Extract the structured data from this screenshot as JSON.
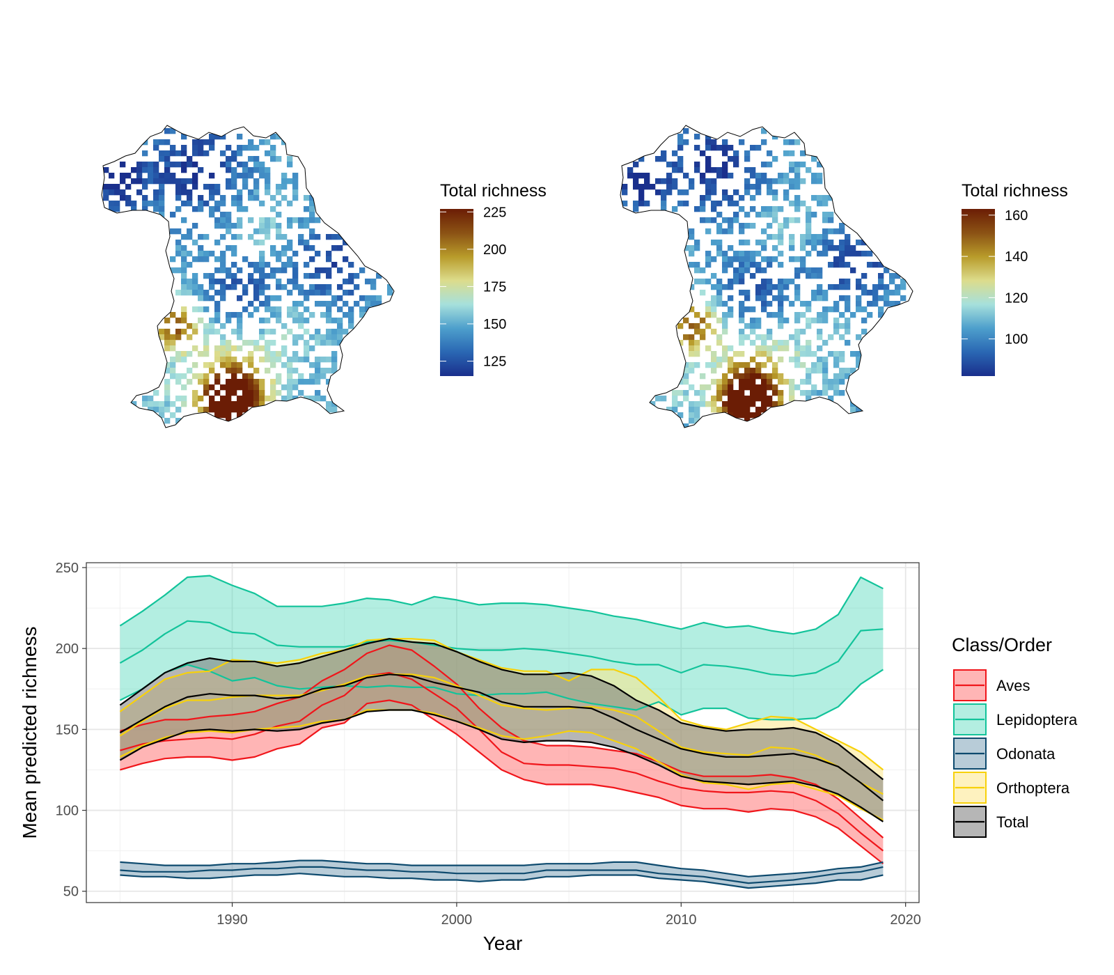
{
  "maps": [
    {
      "legend_title": "Total richness",
      "colorbar_ticks": [
        "225",
        "200",
        "175",
        "150",
        "125"
      ],
      "tick_values": [
        225,
        200,
        175,
        150,
        125
      ],
      "range": [
        115,
        227
      ]
    },
    {
      "legend_title": "Total richness",
      "colorbar_ticks": [
        "160",
        "140",
        "120",
        "100"
      ],
      "tick_values": [
        160,
        140,
        120,
        100
      ],
      "range": [
        82,
        163
      ]
    }
  ],
  "colors": {
    "colorbar_stops": [
      "#1a2f8c",
      "#2a67b3",
      "#4d9fcc",
      "#a6e0dc",
      "#dcdc8c",
      "#b89b2a",
      "#8b5214",
      "#6b1d05"
    ]
  },
  "chart_data": {
    "type": "line",
    "title": "",
    "xlabel": "Year",
    "ylabel": "Mean predicted richness",
    "xlim": [
      1983.5,
      2020.6
    ],
    "ylim": [
      43,
      253
    ],
    "x_ticks": [
      1990,
      2000,
      2010,
      2020
    ],
    "y_ticks": [
      50,
      100,
      150,
      200,
      250
    ],
    "legend_title": "Class/Order",
    "legend_position": "right",
    "grid": true,
    "x": [
      1985,
      1986,
      1987,
      1988,
      1989,
      1990,
      1991,
      1992,
      1993,
      1994,
      1995,
      1996,
      1997,
      1998,
      1999,
      2000,
      2001,
      2002,
      2003,
      2004,
      2005,
      2006,
      2007,
      2008,
      2009,
      2010,
      2011,
      2012,
      2013,
      2014,
      2015,
      2016,
      2017,
      2018,
      2019
    ],
    "series": [
      {
        "name": "Aves",
        "line_color": "#f0151a",
        "fill_color": "#ff6b6b",
        "fill_opacity": 0.5,
        "mean": [
          137,
          141,
          143,
          144,
          145,
          144,
          147,
          152,
          155,
          165,
          171,
          183,
          185,
          181,
          172,
          163,
          150,
          136,
          129,
          128,
          128,
          127,
          126,
          123,
          118,
          114,
          112,
          111,
          111,
          112,
          111,
          106,
          98,
          86,
          75
        ],
        "lower": [
          125,
          129,
          132,
          133,
          133,
          131,
          133,
          138,
          141,
          151,
          154,
          166,
          168,
          165,
          156,
          147,
          136,
          125,
          119,
          116,
          116,
          116,
          114,
          111,
          108,
          103,
          101,
          101,
          99,
          101,
          100,
          96,
          89,
          78,
          67
        ],
        "upper": [
          149,
          153,
          156,
          156,
          158,
          159,
          161,
          166,
          170,
          180,
          187,
          197,
          202,
          199,
          189,
          178,
          163,
          151,
          143,
          140,
          140,
          139,
          137,
          135,
          130,
          124,
          121,
          121,
          121,
          122,
          120,
          116,
          107,
          95,
          83
        ]
      },
      {
        "name": "Lepidoptera",
        "line_color": "#12c39a",
        "fill_color": "#40d5b5",
        "fill_opacity": 0.4,
        "mean": [
          191,
          199,
          209,
          217,
          216,
          210,
          209,
          202,
          201,
          201,
          201,
          204,
          205,
          204,
          202,
          200,
          199,
          199,
          200,
          199,
          197,
          195,
          192,
          190,
          190,
          185,
          190,
          189,
          187,
          184,
          183,
          185,
          192,
          211,
          212
        ],
        "lower": [
          168,
          175,
          185,
          190,
          186,
          180,
          182,
          177,
          175,
          176,
          177,
          176,
          177,
          176,
          176,
          172,
          171,
          172,
          172,
          173,
          169,
          166,
          164,
          162,
          167,
          159,
          163,
          163,
          157,
          156,
          156,
          157,
          164,
          178,
          187
        ],
        "upper": [
          214,
          223,
          233,
          244,
          245,
          239,
          234,
          226,
          226,
          226,
          228,
          231,
          230,
          227,
          232,
          230,
          227,
          228,
          228,
          227,
          225,
          223,
          220,
          218,
          215,
          212,
          216,
          213,
          214,
          211,
          209,
          212,
          221,
          244,
          237
        ]
      },
      {
        "name": "Odonata",
        "line_color": "#0d4a6e",
        "fill_color": "#7da3b8",
        "fill_opacity": 0.55,
        "mean": [
          63,
          62,
          62,
          62,
          63,
          63,
          64,
          64,
          65,
          65,
          64,
          63,
          63,
          62,
          62,
          61,
          61,
          61,
          61,
          63,
          63,
          63,
          63,
          63,
          61,
          60,
          59,
          57,
          55,
          56,
          57,
          59,
          61,
          62,
          65
        ],
        "lower": [
          60,
          59,
          59,
          58,
          58,
          59,
          60,
          60,
          61,
          60,
          59,
          59,
          58,
          58,
          57,
          57,
          56,
          57,
          57,
          59,
          59,
          60,
          60,
          60,
          58,
          57,
          56,
          54,
          52,
          53,
          54,
          55,
          57,
          57,
          60
        ],
        "upper": [
          68,
          67,
          66,
          66,
          66,
          67,
          67,
          68,
          69,
          69,
          68,
          67,
          67,
          66,
          66,
          66,
          66,
          66,
          66,
          67,
          67,
          67,
          68,
          68,
          66,
          64,
          63,
          61,
          59,
          60,
          61,
          62,
          64,
          65,
          68
        ]
      },
      {
        "name": "Orthoptera",
        "line_color": "#f7d10a",
        "fill_color": "#fde88a",
        "fill_opacity": 0.55,
        "mean": [
          146,
          155,
          163,
          168,
          168,
          170,
          171,
          171,
          171,
          174,
          178,
          183,
          184,
          184,
          182,
          177,
          171,
          165,
          163,
          162,
          163,
          164,
          162,
          158,
          149,
          139,
          136,
          135,
          134,
          139,
          138,
          134,
          127,
          117,
          110
        ],
        "lower": [
          133,
          140,
          145,
          148,
          149,
          148,
          150,
          151,
          152,
          155,
          156,
          162,
          162,
          162,
          160,
          155,
          151,
          146,
          144,
          146,
          149,
          148,
          143,
          138,
          130,
          122,
          117,
          116,
          113,
          116,
          117,
          113,
          109,
          101,
          94
        ],
        "upper": [
          161,
          171,
          181,
          185,
          186,
          193,
          192,
          191,
          193,
          197,
          199,
          205,
          206,
          206,
          205,
          198,
          193,
          188,
          186,
          186,
          180,
          187,
          187,
          182,
          170,
          156,
          152,
          150,
          154,
          158,
          157,
          150,
          143,
          136,
          125
        ]
      },
      {
        "name": "Total",
        "line_color": "#000000",
        "fill_color": "#7a7a7a",
        "fill_opacity": 0.55,
        "mean": [
          148,
          156,
          164,
          170,
          172,
          171,
          171,
          169,
          170,
          175,
          177,
          182,
          184,
          183,
          179,
          176,
          173,
          167,
          164,
          164,
          164,
          163,
          157,
          150,
          144,
          138,
          135,
          133,
          133,
          134,
          135,
          132,
          127,
          117,
          106
        ],
        "lower": [
          131,
          139,
          144,
          149,
          150,
          149,
          150,
          149,
          150,
          154,
          156,
          161,
          162,
          162,
          159,
          155,
          150,
          144,
          142,
          143,
          143,
          142,
          139,
          134,
          128,
          121,
          118,
          117,
          116,
          117,
          118,
          115,
          110,
          102,
          93
        ],
        "upper": [
          165,
          175,
          185,
          191,
          194,
          192,
          192,
          189,
          191,
          195,
          199,
          203,
          206,
          204,
          203,
          198,
          192,
          187,
          184,
          184,
          185,
          183,
          177,
          168,
          162,
          154,
          151,
          149,
          150,
          150,
          151,
          148,
          141,
          130,
          119
        ]
      }
    ]
  }
}
